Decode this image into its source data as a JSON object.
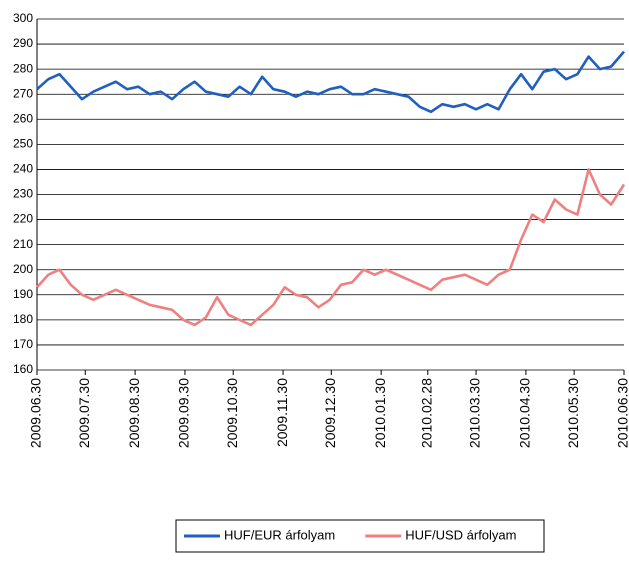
{
  "chart_data": {
    "type": "line",
    "x": [
      "2009.06.30",
      "2009.07.07",
      "2009.07.14",
      "2009.07.21",
      "2009.07.28",
      "2009.08.04",
      "2009.08.11",
      "2009.08.18",
      "2009.08.25",
      "2009.09.01",
      "2009.09.08",
      "2009.09.15",
      "2009.09.22",
      "2009.09.29",
      "2009.10.06",
      "2009.10.13",
      "2009.10.20",
      "2009.10.27",
      "2009.11.03",
      "2009.11.10",
      "2009.11.17",
      "2009.11.24",
      "2009.12.01",
      "2009.12.08",
      "2009.12.15",
      "2009.12.22",
      "2009.12.29",
      "2010.01.05",
      "2010.01.12",
      "2010.01.19",
      "2010.01.26",
      "2010.02.02",
      "2010.02.09",
      "2010.02.16",
      "2010.02.23",
      "2010.03.02",
      "2010.03.09",
      "2010.03.16",
      "2010.03.23",
      "2010.03.30",
      "2010.04.06",
      "2010.04.13",
      "2010.04.20",
      "2010.04.27",
      "2010.05.04",
      "2010.05.11",
      "2010.05.18",
      "2010.05.25",
      "2010.06.01",
      "2010.06.08",
      "2010.06.15",
      "2010.06.22",
      "2010.06.30"
    ],
    "series": [
      {
        "name": "HUF/EUR árfolyam",
        "color": "#1f5fc0",
        "values": [
          272,
          276,
          278,
          273,
          268,
          271,
          273,
          275,
          272,
          273,
          270,
          271,
          268,
          272,
          275,
          271,
          270,
          269,
          273,
          270,
          277,
          272,
          271,
          269,
          271,
          270,
          272,
          273,
          270,
          270,
          272,
          271,
          270,
          269,
          265,
          263,
          266,
          265,
          266,
          264,
          266,
          264,
          272,
          278,
          272,
          279,
          280,
          276,
          278,
          285,
          280,
          281,
          287
        ]
      },
      {
        "name": "HUF/USD árfolyam",
        "color": "#f08080",
        "values": [
          193,
          198,
          200,
          194,
          190,
          188,
          190,
          192,
          190,
          188,
          186,
          185,
          184,
          180,
          178,
          181,
          189,
          182,
          180,
          178,
          182,
          186,
          193,
          190,
          189,
          185,
          188,
          194,
          195,
          200,
          198,
          200,
          198,
          196,
          194,
          192,
          196,
          197,
          198,
          196,
          194,
          198,
          200,
          212,
          222,
          219,
          228,
          224,
          222,
          240,
          230,
          226,
          234
        ]
      }
    ],
    "xlim": [
      "2009.06.30",
      "2010.06.30"
    ],
    "xticks": [
      "2009.06.30",
      "2009.07.30",
      "2009.08.30",
      "2009.09.30",
      "2009.10.30",
      "2009.11.30",
      "2009.12.30",
      "2010.01.30",
      "2010.02.28",
      "2010.03.30",
      "2010.04.30",
      "2010.05.30",
      "2010.06.30"
    ],
    "ylim": [
      160,
      300
    ],
    "yticks": [
      160,
      170,
      180,
      190,
      200,
      210,
      220,
      230,
      240,
      250,
      260,
      270,
      280,
      290,
      300
    ],
    "grid": true,
    "legend": "bottom"
  }
}
